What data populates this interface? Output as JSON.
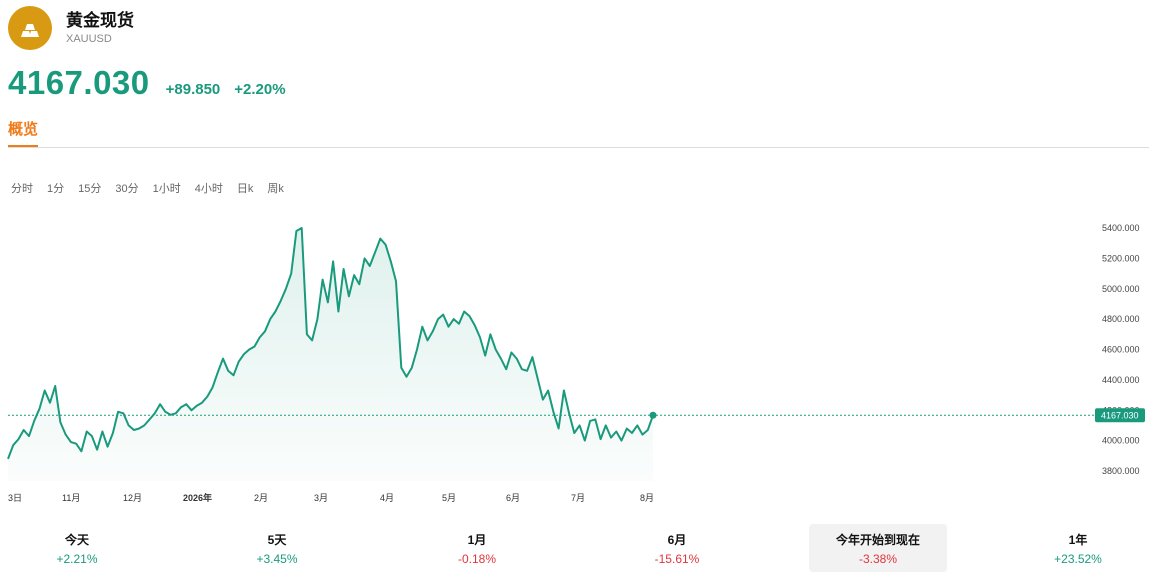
{
  "instrument": {
    "name": "黄金现货",
    "symbol": "XAUUSD",
    "price": "4167.030",
    "change": "+89.850",
    "change_pct": "+2.20%",
    "up_color": "#1a9a7d",
    "down_color": "#e0363c",
    "logo_color": "#d79a12"
  },
  "tabs": [
    {
      "label": "概览",
      "active": true
    }
  ],
  "intervals": [
    "分时",
    "1分",
    "15分",
    "30分",
    "1小时",
    "4小时",
    "日k",
    "周k"
  ],
  "chart_data": {
    "type": "line",
    "x_ticks": [
      "3日",
      "11月",
      "12月",
      "2026年",
      "2月",
      "3月",
      "4月",
      "5月",
      "6月",
      "7月",
      "8月"
    ],
    "y_ticks": [
      "5400.000",
      "5200.000",
      "5000.000",
      "4800.000",
      "4600.000",
      "4400.000",
      "4200.000",
      "4000.000",
      "3800.000"
    ],
    "ylim": [
      3800,
      5400
    ],
    "current_label": "4167.030",
    "current_value": 4167.03,
    "values": [
      3880,
      3970,
      4010,
      4070,
      4030,
      4130,
      4210,
      4330,
      4250,
      4360,
      4120,
      4040,
      3990,
      3980,
      3930,
      4060,
      4030,
      3940,
      4060,
      3960,
      4050,
      4190,
      4180,
      4100,
      4070,
      4080,
      4100,
      4140,
      4180,
      4240,
      4190,
      4170,
      4180,
      4220,
      4240,
      4200,
      4230,
      4250,
      4290,
      4350,
      4450,
      4540,
      4460,
      4430,
      4520,
      4570,
      4600,
      4620,
      4680,
      4720,
      4800,
      4850,
      4920,
      5000,
      5100,
      5380,
      5400,
      4700,
      4660,
      4800,
      5060,
      4910,
      5180,
      4850,
      5130,
      4950,
      5090,
      5030,
      5200,
      5150,
      5240,
      5330,
      5290,
      5180,
      5050,
      4480,
      4420,
      4480,
      4600,
      4750,
      4660,
      4720,
      4800,
      4830,
      4750,
      4800,
      4770,
      4850,
      4820,
      4760,
      4680,
      4560,
      4700,
      4600,
      4540,
      4470,
      4580,
      4540,
      4470,
      4460,
      4550,
      4410,
      4270,
      4330,
      4190,
      4080,
      4330,
      4180,
      4050,
      4100,
      4000,
      4130,
      4140,
      4010,
      4100,
      4020,
      4060,
      4000,
      4080,
      4050,
      4100,
      4040,
      4070,
      4167
    ],
    "title": "",
    "xlabel": "",
    "ylabel": ""
  },
  "performance": [
    {
      "label": "今天",
      "value": "+2.21%",
      "dir": "up"
    },
    {
      "label": "5天",
      "value": "+3.45%",
      "dir": "up"
    },
    {
      "label": "1月",
      "value": "-0.18%",
      "dir": "down"
    },
    {
      "label": "6月",
      "value": "-15.61%",
      "dir": "down"
    },
    {
      "label": "今年开始到现在",
      "value": "-3.38%",
      "dir": "down",
      "active": true
    },
    {
      "label": "1年",
      "value": "+23.52%",
      "dir": "up"
    }
  ]
}
